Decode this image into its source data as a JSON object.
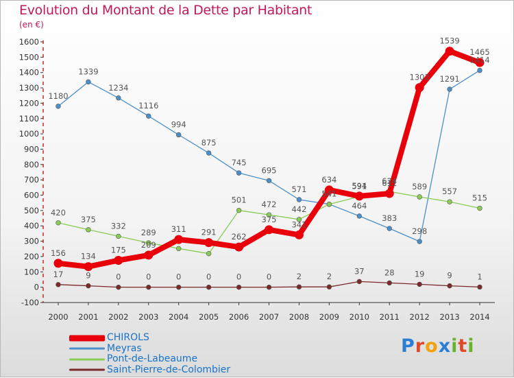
{
  "header": {
    "title": "Evolution du Montant de la Dette par Habitant",
    "subtitle": "(en €)"
  },
  "logo": {
    "text": "Proxiti",
    "letters": [
      {
        "ch": "P",
        "color": "#2a7fd4"
      },
      {
        "ch": "r",
        "color": "#e04a2a"
      },
      {
        "ch": "o",
        "color": "#f2a20f"
      },
      {
        "ch": "x",
        "color": "#2a7fd4"
      },
      {
        "ch": "i",
        "color": "#66b32e"
      },
      {
        "ch": "t",
        "color": "#e04a2a"
      },
      {
        "ch": "i",
        "color": "#66b32e"
      }
    ]
  },
  "chart_data": {
    "type": "line",
    "title": "Evolution du Montant de la Dette par Habitant",
    "subtitle": "(en €)",
    "xlabel": "",
    "ylabel": "",
    "x": [
      2000,
      2001,
      2002,
      2003,
      2004,
      2005,
      2006,
      2007,
      2008,
      2009,
      2010,
      2011,
      2012,
      2013,
      2014
    ],
    "ylim": [
      -100,
      1600
    ],
    "yticks": [
      -100,
      0,
      100,
      200,
      300,
      400,
      500,
      600,
      700,
      800,
      900,
      1000,
      1100,
      1200,
      1300,
      1400,
      1500,
      1600
    ],
    "grid": false,
    "legend_position": "bottom-left",
    "series": [
      {
        "name": "Meyras",
        "color": "#4a8fc8",
        "values": [
          1180,
          1339,
          1234,
          1116,
          994,
          875,
          745,
          695,
          571,
          541,
          464,
          383,
          298,
          1291,
          1414
        ],
        "labels": [
          "1180",
          "1339",
          "1234",
          "1116",
          "994",
          "875",
          "745",
          "695",
          "571",
          "541",
          "464",
          "383",
          "298",
          "1291",
          "1414"
        ]
      },
      {
        "name": "Pont-de-Labeaume",
        "color": "#88cc55",
        "values": [
          420,
          375,
          332,
          289,
          252,
          219,
          501,
          472,
          442,
          541,
          591,
          624,
          589,
          557,
          515
        ],
        "labels": [
          "420",
          "375",
          "332",
          "289",
          "",
          "",
          "501",
          "472",
          "442",
          "541",
          "591",
          "624",
          "589",
          "557",
          "515"
        ]
      },
      {
        "name": "Saint-Pierre-de-Colombier",
        "color": "#7a2a2a",
        "values": [
          17,
          9,
          0,
          0,
          0,
          0,
          0,
          0,
          2,
          2,
          37,
          28,
          19,
          9,
          1
        ],
        "labels": [
          "17",
          "9",
          "0",
          "0",
          "0",
          "0",
          "0",
          "0",
          "2",
          "2",
          "37",
          "28",
          "19",
          "9",
          "1"
        ]
      },
      {
        "name": "CHIROLS",
        "color": "#e8000b",
        "values": [
          156,
          134,
          175,
          209,
          311,
          291,
          262,
          375,
          341,
          634,
          594,
          611,
          1302,
          1539,
          1465
        ],
        "labels": [
          "156",
          "134",
          "175",
          "209",
          "311",
          "291",
          "262",
          "375",
          "341",
          "634",
          "594",
          "611",
          "1302",
          "1539",
          "1465"
        ]
      }
    ]
  }
}
